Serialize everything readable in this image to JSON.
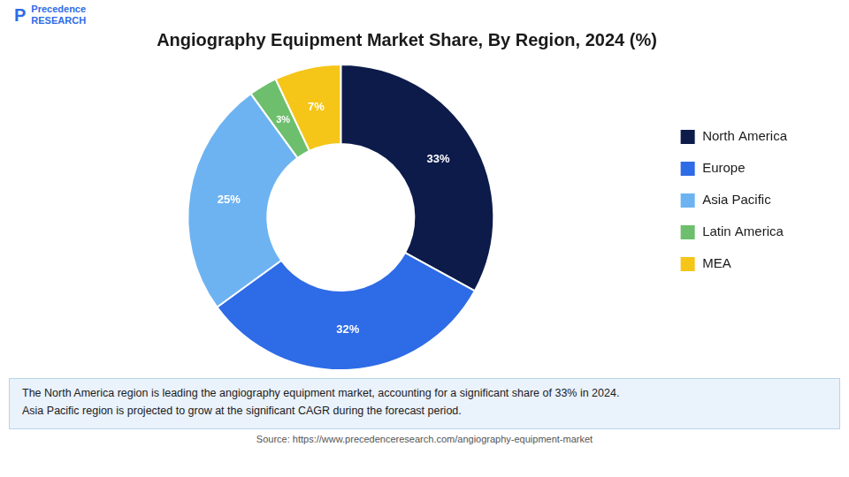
{
  "chart_data": {
    "type": "doughnut",
    "title": "Angiography Equipment Market Share, By Region, 2024 (%)",
    "categories": [
      "North America",
      "Europe",
      "Asia Pacific",
      "Latin America",
      "MEA"
    ],
    "values": [
      33,
      32,
      25,
      3,
      7
    ],
    "value_labels": [
      "33%",
      "32%",
      "25%",
      "3%",
      "7%"
    ],
    "colors": [
      "#0d1b4b",
      "#2e6be6",
      "#6db3f2",
      "#6dbf6d",
      "#f5c518"
    ],
    "data_labels": true,
    "legend": "right",
    "logo": [
      "P",
      "Precedence\nRESEARCH"
    ],
    "footnote": "The North America region is leading the angiography equipment market, accounting for a significant share of 33% in 2024.\nAsia Pacific region is projected to grow at the significant CAGR during the forecast period.",
    "footnote_color": "#eaf2fb",
    "source": "Source: https://www.precedenceresearch.com/angiography-equipment-market"
  }
}
